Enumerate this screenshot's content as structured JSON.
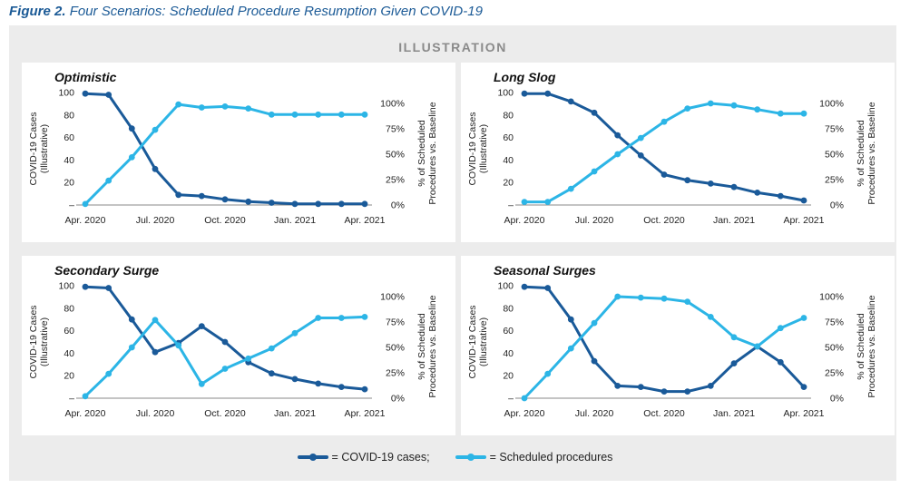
{
  "figure": {
    "label": "Figure 2.",
    "title": "Four Scenarios: Scheduled Procedure Resumption Given COVID-19",
    "banner": "ILLUSTRATION"
  },
  "colors": {
    "cases": "#1a5a99",
    "procedures": "#2cb5e6",
    "axis": "#888888"
  },
  "legend": {
    "cases_label": "= COVID-19 cases;",
    "procedures_label": "= Scheduled procedures"
  },
  "chart_data": [
    {
      "type": "line",
      "title": "Optimistic",
      "x_ticks": [
        "Apr. 2020",
        "Jul. 2020",
        "Oct. 2020",
        "Jan. 2021",
        "Apr. 2021"
      ],
      "x": [
        0,
        1,
        2,
        3,
        4,
        5,
        6,
        7,
        8,
        9,
        10,
        11,
        12
      ],
      "ylabel_left": [
        "COVID-19 Cases",
        "(Illustrative)"
      ],
      "ylabel_right": [
        "% of Scheduled",
        "Procedures vs. Baseline"
      ],
      "left_ticks": [
        "100",
        "80",
        "60",
        "40",
        "20",
        "–"
      ],
      "right_ticks": [
        "100%",
        "75%",
        "50%",
        "25%",
        "0%"
      ],
      "ylim_left": [
        0,
        100
      ],
      "ylim_right": [
        0,
        100
      ],
      "series": [
        {
          "name": "COVID-19 cases",
          "axis": "left",
          "values": [
            99,
            98,
            68,
            32,
            9,
            8,
            5,
            3,
            2,
            1,
            1,
            1,
            1
          ]
        },
        {
          "name": "Scheduled procedures",
          "axis": "right",
          "values": [
            1,
            24,
            47,
            74,
            99,
            96,
            97,
            95,
            89,
            89,
            89,
            89,
            89
          ]
        }
      ]
    },
    {
      "type": "line",
      "title": "Long Slog",
      "x_ticks": [
        "Apr. 2020",
        "Jul. 2020",
        "Oct. 2020",
        "Jan. 2021",
        "Apr. 2021"
      ],
      "x": [
        0,
        1,
        2,
        3,
        4,
        5,
        6,
        7,
        8,
        9,
        10,
        11,
        12
      ],
      "ylabel_left": [
        "COVID-19 Cases",
        "(Illustrative)"
      ],
      "ylabel_right": [
        "% of Scheduled",
        "Procedures vs. Baseline"
      ],
      "left_ticks": [
        "100",
        "80",
        "60",
        "40",
        "20",
        "–"
      ],
      "right_ticks": [
        "100%",
        "75%",
        "50%",
        "25%",
        "0%"
      ],
      "ylim_left": [
        0,
        100
      ],
      "ylim_right": [
        0,
        100
      ],
      "series": [
        {
          "name": "COVID-19 cases",
          "axis": "left",
          "values": [
            99,
            99,
            92,
            82,
            62,
            44,
            27,
            22,
            19,
            16,
            11,
            8,
            4
          ]
        },
        {
          "name": "Scheduled procedures",
          "axis": "right",
          "values": [
            3,
            3,
            16,
            33,
            50,
            66,
            82,
            95,
            100,
            98,
            94,
            90,
            90
          ]
        }
      ]
    },
    {
      "type": "line",
      "title": "Secondary Surge",
      "x_ticks": [
        "Apr. 2020",
        "Jul. 2020",
        "Oct. 2020",
        "Jan. 2021",
        "Apr. 2021"
      ],
      "x": [
        0,
        1,
        2,
        3,
        4,
        5,
        6,
        7,
        8,
        9,
        10,
        11,
        12
      ],
      "ylabel_left": [
        "COVID-19 Cases",
        "(Illustrative)"
      ],
      "ylabel_right": [
        "% of Scheduled",
        "Procedures vs. Baseline"
      ],
      "left_ticks": [
        "100",
        "80",
        "60",
        "40",
        "20",
        "–"
      ],
      "right_ticks": [
        "100%",
        "75%",
        "50%",
        "25%",
        "0%"
      ],
      "ylim_left": [
        0,
        100
      ],
      "ylim_right": [
        0,
        100
      ],
      "series": [
        {
          "name": "COVID-19 cases",
          "axis": "left",
          "values": [
            99,
            98,
            70,
            41,
            49,
            64,
            50,
            32,
            22,
            17,
            13,
            10,
            8
          ]
        },
        {
          "name": "Scheduled procedures",
          "axis": "right",
          "values": [
            2,
            24,
            50,
            77,
            52,
            14,
            29,
            39,
            49,
            64,
            79,
            79,
            80
          ]
        }
      ]
    },
    {
      "type": "line",
      "title": "Seasonal Surges",
      "x_ticks": [
        "Apr. 2020",
        "Jul. 2020",
        "Oct. 2020",
        "Jan. 2021",
        "Apr. 2021"
      ],
      "x": [
        0,
        1,
        2,
        3,
        4,
        5,
        6,
        7,
        8,
        9,
        10,
        11,
        12
      ],
      "ylabel_left": [
        "COVID-19 Cases",
        "(Illustrative)"
      ],
      "ylabel_right": [
        "% of Scheduled",
        "Procedures vs. Baseline"
      ],
      "left_ticks": [
        "100",
        "80",
        "60",
        "40",
        "20",
        "–"
      ],
      "right_ticks": [
        "100%",
        "75%",
        "50%",
        "25%",
        "0%"
      ],
      "ylim_left": [
        0,
        100
      ],
      "ylim_right": [
        0,
        100
      ],
      "series": [
        {
          "name": "COVID-19 cases",
          "axis": "left",
          "values": [
            99,
            98,
            70,
            33,
            11,
            10,
            6,
            6,
            11,
            31,
            46,
            32,
            10
          ]
        },
        {
          "name": "Scheduled procedures",
          "axis": "right",
          "values": [
            0,
            24,
            49,
            74,
            100,
            99,
            98,
            95,
            80,
            60,
            51,
            69,
            79
          ]
        }
      ]
    }
  ]
}
